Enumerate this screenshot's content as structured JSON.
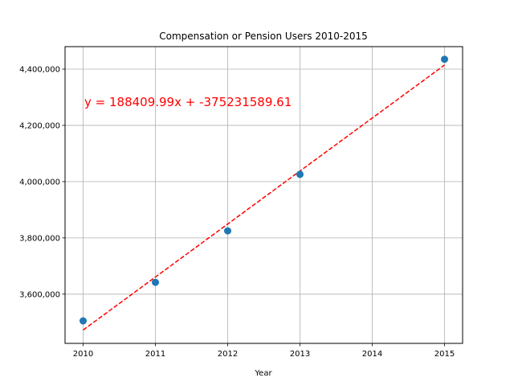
{
  "chart_data": {
    "type": "scatter",
    "title": "Compensation or Pension Users 2010-2015",
    "xlabel": "Year",
    "ylabel": "",
    "xlim": [
      2009.75,
      2015.25
    ],
    "ylim": [
      3425000,
      4480000
    ],
    "x_ticks": [
      2010,
      2011,
      2012,
      2013,
      2014,
      2015
    ],
    "x_tick_labels": [
      "2010",
      "2011",
      "2012",
      "2013",
      "2014",
      "2015"
    ],
    "y_ticks": [
      3600000,
      3800000,
      4000000,
      4200000,
      4400000
    ],
    "y_tick_labels": [
      "3,600,000",
      "3,800,000",
      "4,000,000",
      "4,200,000",
      "4,400,000"
    ],
    "grid": true,
    "points": [
      {
        "x": 2010,
        "y": 3505000
      },
      {
        "x": 2011,
        "y": 3642000
      },
      {
        "x": 2012,
        "y": 3825000
      },
      {
        "x": 2013,
        "y": 4026000
      },
      {
        "x": 2014,
        "y": null
      },
      {
        "x": 2015,
        "y": 4435000
      }
    ],
    "trendline": {
      "slope": 188409.99,
      "intercept": -375231589.61,
      "x_range": [
        2010,
        2015
      ],
      "label": "y = 188409.99x + -375231589.61",
      "color": "#ff0000",
      "style": "dashed"
    },
    "point_color": "#1f77b4"
  }
}
